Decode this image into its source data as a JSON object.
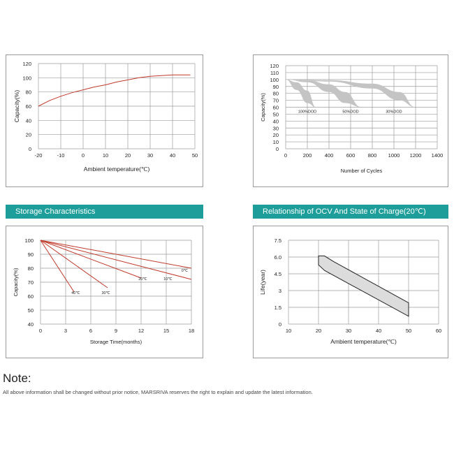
{
  "headers": {
    "storage": "Storage Characteristics",
    "ocv": "Relationship of OCV And State of Charge(20℃)"
  },
  "note": {
    "title": "Note:",
    "text": "All above information  shall be changed without prior notice, MARSRIVA reserves the right to explain and update the latest information."
  },
  "chart_data": [
    {
      "type": "line",
      "xlabel": "Ambient temperature(℃)",
      "ylabel": "Capacity(%)",
      "xlim": [
        -20,
        50
      ],
      "ylim": [
        0,
        120
      ],
      "xticks": [
        -20,
        -10,
        0,
        10,
        20,
        30,
        40,
        50
      ],
      "yticks": [
        0,
        20,
        40,
        60,
        80,
        100,
        120
      ],
      "grid": true,
      "series": [
        {
          "color": "#c0392b",
          "x": [
            -20,
            -15,
            -10,
            -5,
            0,
            5,
            10,
            15,
            20,
            25,
            30,
            35,
            40,
            45,
            48
          ],
          "y": [
            60,
            68,
            74,
            79,
            83,
            87,
            90,
            94,
            97,
            100,
            102,
            103,
            104,
            104,
            104
          ]
        }
      ]
    },
    {
      "type": "area",
      "xlabel": "Number of Cycles",
      "ylabel": "Capacity(%)",
      "xlim": [
        0,
        1400
      ],
      "ylim": [
        0,
        120
      ],
      "xticks": [
        0,
        200,
        400,
        600,
        800,
        1000,
        1200,
        1400
      ],
      "yticks": [
        0,
        10,
        20,
        30,
        40,
        50,
        60,
        70,
        80,
        90,
        100,
        110,
        120
      ],
      "grid": true,
      "color": "#c4c4c4",
      "series": [
        {
          "name": "100%DOD",
          "upper": {
            "x": [
              0,
              100,
              200,
              280
            ],
            "y": [
              100,
              96,
              84,
              60
            ]
          },
          "lower": {
            "x": [
              0,
              100,
              200,
              280
            ],
            "y": [
              100,
              85,
              66,
              60
            ]
          }
        },
        {
          "name": "50%DOD",
          "upper": {
            "x": [
              0,
              200,
              400,
              550,
              700
            ],
            "y": [
              100,
              99,
              93,
              82,
              60
            ]
          },
          "lower": {
            "x": [
              0,
              200,
              400,
              550,
              700
            ],
            "y": [
              100,
              96,
              82,
              66,
              60
            ]
          }
        },
        {
          "name": "30%DOD",
          "upper": {
            "x": [
              0,
              400,
              800,
              1050,
              1200
            ],
            "y": [
              100,
              99,
              94,
              82,
              60
            ]
          },
          "lower": {
            "x": [
              0,
              400,
              800,
              1050,
              1200
            ],
            "y": [
              100,
              97,
              87,
              70,
              60
            ]
          }
        }
      ],
      "annotations": [
        {
          "text": "100%DOD",
          "x": 200,
          "y": 52
        },
        {
          "text": "50%DOD",
          "x": 600,
          "y": 52
        },
        {
          "text": "30%DOD",
          "x": 1000,
          "y": 52
        }
      ]
    },
    {
      "type": "line",
      "xlabel": "Storage Time(months)",
      "ylabel": "Capacity(%)",
      "xlim": [
        0,
        18
      ],
      "ylim": [
        40,
        100
      ],
      "xticks": [
        0,
        3,
        6,
        9,
        12,
        15,
        18
      ],
      "yticks": [
        40,
        50,
        60,
        70,
        80,
        90,
        100
      ],
      "grid": true,
      "series": [
        {
          "name": "0℃",
          "color": "#c0392b",
          "x": [
            0,
            18
          ],
          "y": [
            100,
            80
          ]
        },
        {
          "name": "10℃",
          "color": "#c0392b",
          "x": [
            0,
            18
          ],
          "y": [
            100,
            72
          ]
        },
        {
          "name": "20℃",
          "color": "#c0392b",
          "x": [
            0,
            12
          ],
          "y": [
            100,
            73
          ]
        },
        {
          "name": "30℃",
          "color": "#c0392b",
          "x": [
            0,
            8
          ],
          "y": [
            100,
            66
          ]
        },
        {
          "name": "40℃",
          "color": "#c0392b",
          "x": [
            0,
            4
          ],
          "y": [
            100,
            63
          ]
        }
      ],
      "annotations": [
        {
          "text": "0℃",
          "x": 17.2,
          "y": 77.5
        },
        {
          "text": "10℃",
          "x": 15.2,
          "y": 71.5
        },
        {
          "text": "20℃",
          "x": 12.2,
          "y": 71.5
        },
        {
          "text": "30℃",
          "x": 7.8,
          "y": 61.5
        },
        {
          "text": "40℃",
          "x": 4.2,
          "y": 61.5
        }
      ]
    },
    {
      "type": "area",
      "xlabel": "Ambient temperature(℃)",
      "ylabel": "Life(year)",
      "xlim": [
        10,
        60
      ],
      "ylim": [
        0,
        7.5
      ],
      "xticks": [
        10,
        20,
        30,
        40,
        50,
        60
      ],
      "yticks": [
        0,
        1.5,
        3,
        4.5,
        6,
        7.5
      ],
      "ytick_labels": [
        "0",
        "1.5",
        "3",
        "4.5",
        "6.0",
        "7.5"
      ],
      "grid": true,
      "color": "#dcdcdc",
      "band": {
        "upper": {
          "x": [
            20,
            22,
            25,
            50
          ],
          "y": [
            6.1,
            6.1,
            5.6,
            1.9
          ]
        },
        "lower": {
          "x": [
            20,
            22,
            50
          ],
          "y": [
            5.3,
            4.8,
            0.7
          ]
        }
      }
    }
  ]
}
